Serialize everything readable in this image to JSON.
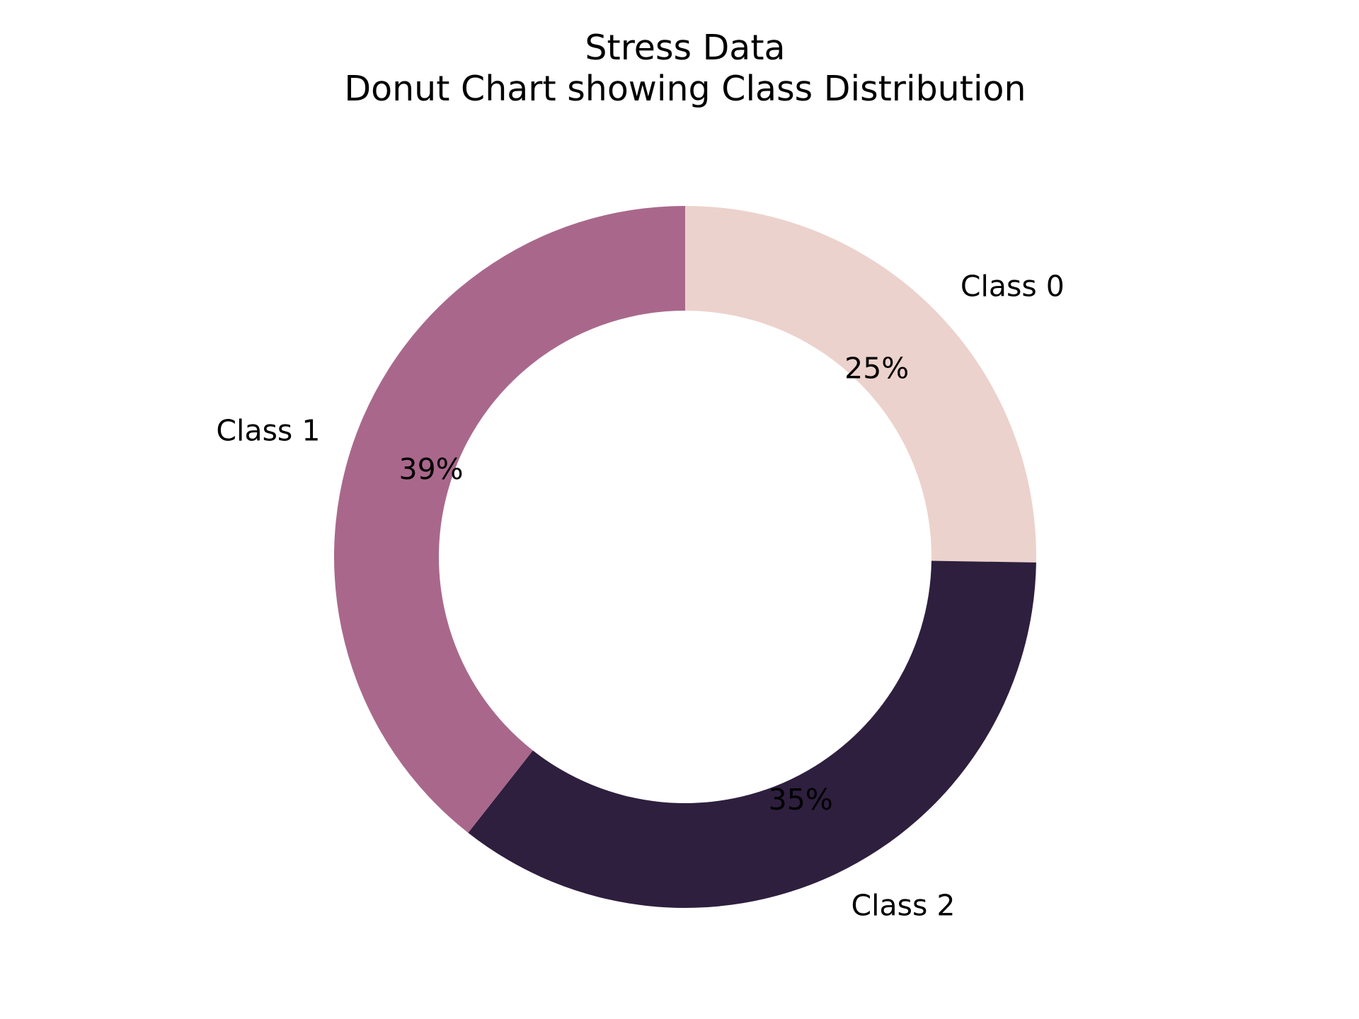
{
  "chart_data": {
    "type": "pie",
    "variant": "donut",
    "title": "Stress Data",
    "subtitle": "Donut Chart showing Class Distribution",
    "slices": [
      {
        "label": "Class 0",
        "value": 25,
        "pct_label": "25%",
        "color": "#ecd2cc"
      },
      {
        "label": "Class 2",
        "value": 35,
        "pct_label": "35%",
        "color": "#2e1f3e"
      },
      {
        "label": "Class 1",
        "value": 39,
        "pct_label": "39%",
        "color": "#a9688b"
      }
    ],
    "start_angle": "top (12 o'clock), clockwise",
    "legend": "none"
  }
}
